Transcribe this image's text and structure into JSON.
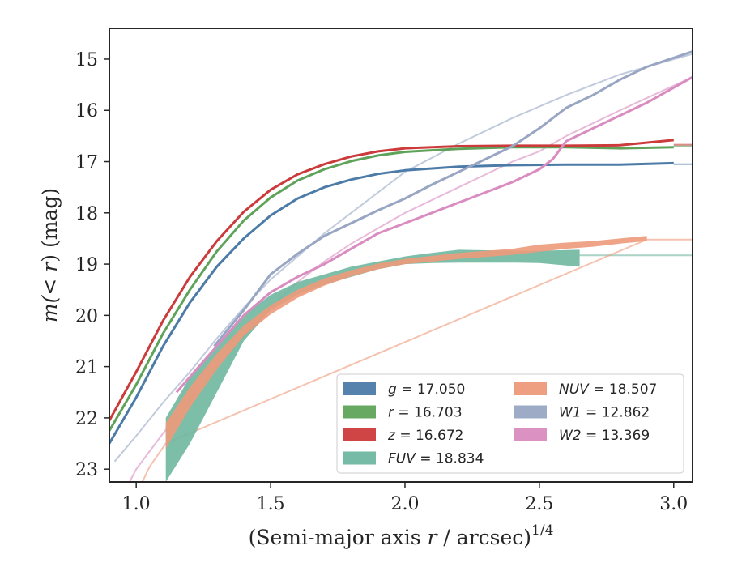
{
  "chart_data": {
    "type": "line",
    "xlabel_main": "(Semi-major axis ",
    "xlabel_var": "r",
    "xlabel_tail": " / arcsec)",
    "xlabel_exp": "1/4",
    "ylabel_pre": "m(",
    "ylabel_mid": "< ",
    "ylabel_var": "r",
    "ylabel_post": ") (mag)",
    "xlim": [
      0.9,
      3.07
    ],
    "ylim": [
      23.25,
      14.4
    ],
    "xticks": [
      "1.0",
      "1.5",
      "2.0",
      "2.5",
      "3.0"
    ],
    "yticks": [
      "15",
      "16",
      "17",
      "18",
      "19",
      "20",
      "21",
      "22",
      "23"
    ],
    "series": [
      {
        "name": "g",
        "legend_value": "17.050",
        "color": "#4C7BA8",
        "band": false,
        "data": [
          [
            0.9,
            22.5
          ],
          [
            1.0,
            21.6
          ],
          [
            1.1,
            20.6
          ],
          [
            1.2,
            19.75
          ],
          [
            1.3,
            19.05
          ],
          [
            1.4,
            18.5
          ],
          [
            1.5,
            18.05
          ],
          [
            1.6,
            17.72
          ],
          [
            1.7,
            17.5
          ],
          [
            1.8,
            17.35
          ],
          [
            1.9,
            17.24
          ],
          [
            2.0,
            17.17
          ],
          [
            2.2,
            17.1
          ],
          [
            2.4,
            17.07
          ],
          [
            2.6,
            17.06
          ],
          [
            2.8,
            17.06
          ],
          [
            3.0,
            17.03
          ]
        ],
        "model": [
          [
            3.0,
            17.05
          ],
          [
            3.07,
            17.05
          ]
        ]
      },
      {
        "name": "r",
        "legend_value": "16.703",
        "color": "#5FA35A",
        "band": false,
        "data": [
          [
            0.9,
            22.25
          ],
          [
            1.0,
            21.35
          ],
          [
            1.1,
            20.35
          ],
          [
            1.2,
            19.5
          ],
          [
            1.3,
            18.75
          ],
          [
            1.4,
            18.15
          ],
          [
            1.5,
            17.7
          ],
          [
            1.6,
            17.37
          ],
          [
            1.7,
            17.15
          ],
          [
            1.8,
            16.99
          ],
          [
            1.9,
            16.88
          ],
          [
            2.0,
            16.81
          ],
          [
            2.2,
            16.75
          ],
          [
            2.4,
            16.72
          ],
          [
            2.6,
            16.72
          ],
          [
            2.8,
            16.74
          ],
          [
            3.0,
            16.72
          ]
        ],
        "model": [
          [
            3.0,
            16.7
          ],
          [
            3.07,
            16.7
          ]
        ]
      },
      {
        "name": "z",
        "legend_value": "16.672",
        "color": "#CC3B3B",
        "band": false,
        "data": [
          [
            0.9,
            22.05
          ],
          [
            1.0,
            21.1
          ],
          [
            1.1,
            20.1
          ],
          [
            1.2,
            19.25
          ],
          [
            1.3,
            18.55
          ],
          [
            1.4,
            17.98
          ],
          [
            1.5,
            17.55
          ],
          [
            1.6,
            17.25
          ],
          [
            1.7,
            17.05
          ],
          [
            1.8,
            16.9
          ],
          [
            1.9,
            16.8
          ],
          [
            2.0,
            16.74
          ],
          [
            2.2,
            16.7
          ],
          [
            2.4,
            16.69
          ],
          [
            2.6,
            16.69
          ],
          [
            2.8,
            16.68
          ],
          [
            3.0,
            16.58
          ]
        ],
        "model": [
          [
            3.0,
            16.67
          ],
          [
            3.07,
            16.67
          ]
        ]
      },
      {
        "name": "FUV",
        "legend_value": "18.834",
        "color": "#6FB7A0",
        "band": true,
        "upper": [
          [
            1.11,
            22.0
          ],
          [
            1.2,
            21.2
          ],
          [
            1.3,
            20.6
          ],
          [
            1.4,
            20.0
          ],
          [
            1.5,
            19.6
          ],
          [
            1.6,
            19.35
          ],
          [
            1.7,
            19.2
          ],
          [
            1.8,
            19.05
          ],
          [
            1.9,
            18.95
          ],
          [
            2.0,
            18.85
          ],
          [
            2.1,
            18.78
          ],
          [
            2.2,
            18.72
          ],
          [
            2.4,
            18.74
          ],
          [
            2.5,
            18.74
          ],
          [
            2.65,
            18.72
          ]
        ],
        "lower": [
          [
            1.11,
            23.25
          ],
          [
            1.2,
            22.5
          ],
          [
            1.3,
            21.5
          ],
          [
            1.4,
            20.5
          ],
          [
            1.5,
            19.9
          ],
          [
            1.6,
            19.6
          ],
          [
            1.7,
            19.4
          ],
          [
            1.8,
            19.25
          ],
          [
            1.9,
            19.1
          ],
          [
            2.0,
            19.0
          ],
          [
            2.1,
            18.98
          ],
          [
            2.2,
            18.97
          ],
          [
            2.4,
            18.97
          ],
          [
            2.5,
            18.98
          ],
          [
            2.65,
            19.05
          ]
        ],
        "model": [
          [
            2.65,
            18.83
          ],
          [
            3.07,
            18.83
          ]
        ]
      },
      {
        "name": "NUV",
        "legend_value": "18.507",
        "color": "#EE9A7A",
        "band": true,
        "upper": [
          [
            1.11,
            22.1
          ],
          [
            1.2,
            21.4
          ],
          [
            1.3,
            20.75
          ],
          [
            1.4,
            20.2
          ],
          [
            1.5,
            19.8
          ],
          [
            1.6,
            19.5
          ],
          [
            1.7,
            19.28
          ],
          [
            1.8,
            19.12
          ],
          [
            1.9,
            18.99
          ],
          [
            2.0,
            18.9
          ],
          [
            2.2,
            18.78
          ],
          [
            2.4,
            18.7
          ],
          [
            2.5,
            18.62
          ],
          [
            2.6,
            18.58
          ],
          [
            2.7,
            18.55
          ],
          [
            2.8,
            18.5
          ],
          [
            2.9,
            18.45
          ]
        ],
        "lower": [
          [
            1.11,
            22.6
          ],
          [
            1.2,
            21.8
          ],
          [
            1.3,
            21.05
          ],
          [
            1.4,
            20.4
          ],
          [
            1.5,
            19.98
          ],
          [
            1.6,
            19.66
          ],
          [
            1.7,
            19.42
          ],
          [
            1.8,
            19.24
          ],
          [
            1.9,
            19.1
          ],
          [
            2.0,
            19.0
          ],
          [
            2.2,
            18.9
          ],
          [
            2.4,
            18.82
          ],
          [
            2.5,
            18.76
          ],
          [
            2.6,
            18.7
          ],
          [
            2.7,
            18.66
          ],
          [
            2.8,
            18.6
          ],
          [
            2.9,
            18.55
          ]
        ],
        "model": [
          [
            1.0,
            23.5
          ],
          [
            1.05,
            22.95
          ],
          [
            1.11,
            22.5
          ],
          [
            2.9,
            18.52
          ],
          [
            3.07,
            18.52
          ]
        ]
      },
      {
        "name": "W1",
        "legend_value": "12.862",
        "color": "#98A6C4",
        "band": false,
        "data": [
          [
            1.29,
            20.6
          ],
          [
            1.4,
            19.9
          ],
          [
            1.5,
            19.2
          ],
          [
            1.6,
            18.8
          ],
          [
            1.7,
            18.45
          ],
          [
            1.8,
            18.2
          ],
          [
            1.9,
            17.95
          ],
          [
            2.0,
            17.72
          ],
          [
            2.1,
            17.45
          ],
          [
            2.2,
            17.2
          ],
          [
            2.3,
            16.95
          ],
          [
            2.4,
            16.7
          ],
          [
            2.5,
            16.35
          ],
          [
            2.6,
            15.95
          ],
          [
            2.7,
            15.7
          ],
          [
            2.8,
            15.4
          ],
          [
            2.9,
            15.15
          ],
          [
            3.07,
            14.85
          ]
        ],
        "model": [
          [
            0.92,
            22.85
          ],
          [
            1.0,
            22.35
          ],
          [
            1.1,
            21.7
          ],
          [
            1.2,
            21.1
          ],
          [
            1.3,
            20.45
          ],
          [
            1.4,
            19.85
          ],
          [
            1.5,
            19.3
          ],
          [
            1.6,
            18.85
          ],
          [
            1.7,
            18.4
          ],
          [
            1.8,
            18.0
          ],
          [
            1.9,
            17.6
          ],
          [
            2.0,
            17.2
          ],
          [
            2.2,
            16.65
          ],
          [
            2.4,
            16.15
          ],
          [
            2.6,
            15.7
          ],
          [
            2.8,
            15.3
          ],
          [
            3.07,
            14.9
          ]
        ]
      },
      {
        "name": "W2",
        "legend_value": "13.369",
        "color": "#D98CC0",
        "band": false,
        "data": [
          [
            1.15,
            21.5
          ],
          [
            1.3,
            20.6
          ],
          [
            1.4,
            20.0
          ],
          [
            1.5,
            19.55
          ],
          [
            1.6,
            19.25
          ],
          [
            1.7,
            19.0
          ],
          [
            1.8,
            18.7
          ],
          [
            1.9,
            18.4
          ],
          [
            2.0,
            18.2
          ],
          [
            2.1,
            18.0
          ],
          [
            2.2,
            17.8
          ],
          [
            2.3,
            17.6
          ],
          [
            2.4,
            17.4
          ],
          [
            2.5,
            17.15
          ],
          [
            2.55,
            16.95
          ],
          [
            2.6,
            16.6
          ],
          [
            2.7,
            16.35
          ],
          [
            2.8,
            16.1
          ],
          [
            2.9,
            15.85
          ],
          [
            3.07,
            15.35
          ]
        ],
        "model": [
          [
            0.97,
            23.3
          ],
          [
            1.0,
            23.0
          ],
          [
            1.1,
            22.3
          ],
          [
            1.2,
            21.65
          ],
          [
            1.3,
            21.0
          ],
          [
            1.4,
            20.4
          ],
          [
            1.5,
            19.85
          ],
          [
            1.6,
            19.35
          ],
          [
            1.7,
            18.95
          ],
          [
            1.8,
            18.6
          ],
          [
            1.9,
            18.3
          ],
          [
            2.0,
            18.0
          ],
          [
            2.2,
            17.5
          ],
          [
            2.4,
            17.0
          ],
          [
            2.5,
            16.8
          ],
          [
            2.6,
            16.5
          ],
          [
            2.8,
            16.0
          ],
          [
            3.07,
            15.35
          ]
        ]
      }
    ],
    "legend_order": [
      [
        "g",
        "r",
        "z",
        "FUV"
      ],
      [
        "NUV",
        "W1",
        "W2"
      ]
    ],
    "legend_position": "lower-right",
    "grid": false
  }
}
